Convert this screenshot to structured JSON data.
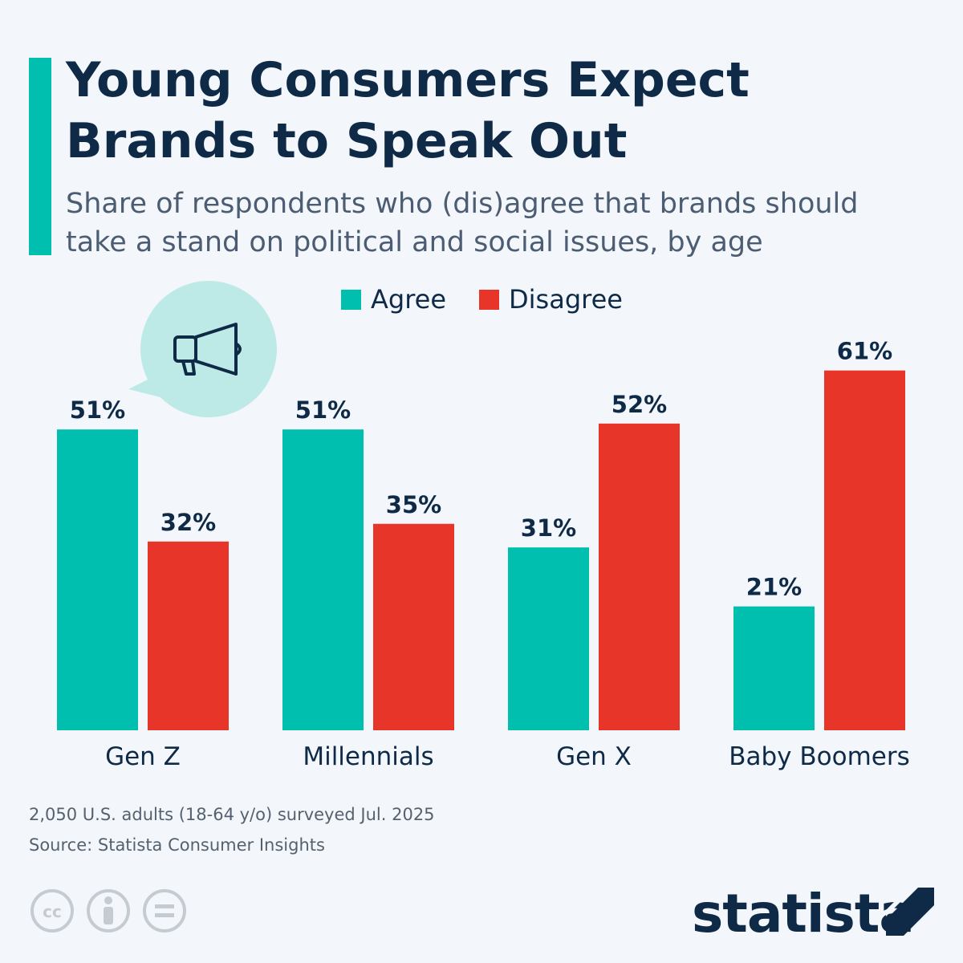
{
  "chart_data": {
    "type": "bar",
    "title": "Young Consumers Expect Brands to Speak Out",
    "subtitle": "Share of respondents who (dis)agree that brands should take a stand on political and social issues, by age",
    "categories": [
      "Gen Z",
      "Millennials",
      "Gen X",
      "Baby Boomers"
    ],
    "series": [
      {
        "name": "Agree",
        "color": "#00bfae",
        "values": [
          51,
          51,
          31,
          21
        ],
        "value_labels": [
          "51%",
          "51%",
          "31%",
          "21%"
        ]
      },
      {
        "name": "Disagree",
        "color": "#e8352a",
        "values": [
          32,
          35,
          52,
          61
        ],
        "value_labels": [
          "32%",
          "35%",
          "52%",
          "61%"
        ]
      }
    ],
    "notes": [
      "2,050 U.S. adults (18-64 y/o) surveyed Jul. 2025",
      "Source: Statista Consumer Insights"
    ],
    "brand": "statista"
  }
}
